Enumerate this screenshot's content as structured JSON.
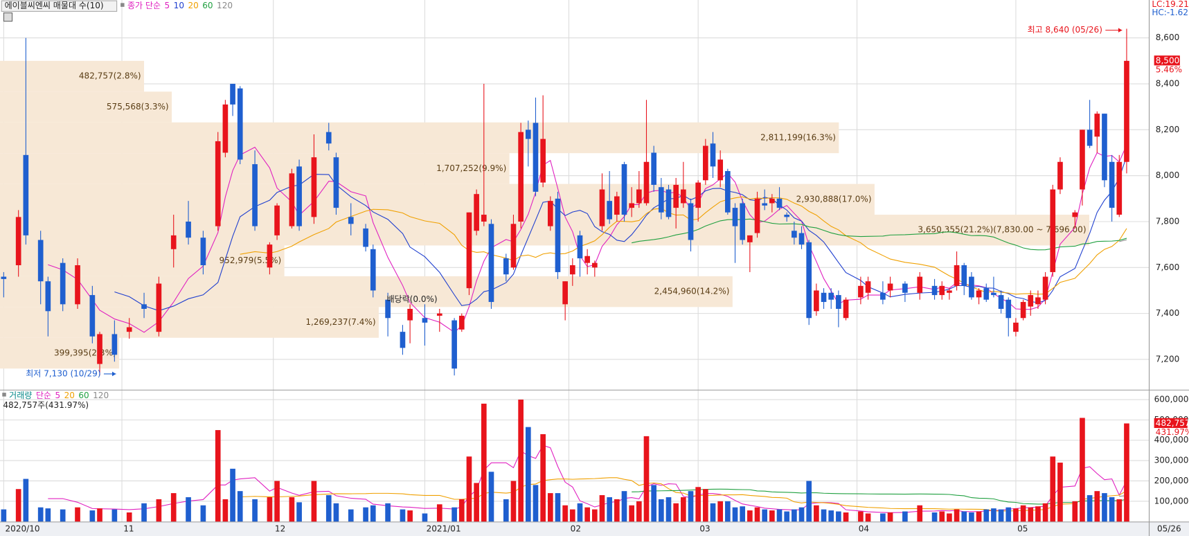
{
  "chart_data": {
    "type": "candlestick",
    "title": "에이블씨엔씨 매물대 수(10)",
    "ma_label": "종가 단순",
    "ma_periods": [
      5,
      10,
      20,
      60,
      120
    ],
    "ma_colors": [
      "#e020c0",
      "#1f3fcf",
      "#f0a000",
      "#20a040",
      "#888888"
    ],
    "lc": "LC:19.21",
    "hc": "HC:-1.62",
    "up_color": "#e8141c",
    "down_color": "#1f5fcf",
    "x": [
      0,
      2,
      3,
      5,
      6,
      8,
      10,
      12,
      13,
      15,
      17,
      19,
      21,
      23,
      25,
      27,
      29,
      30,
      31,
      32,
      34,
      36,
      37,
      39,
      40,
      42,
      44,
      45,
      47,
      49,
      50,
      52,
      54,
      55,
      57,
      59,
      61,
      62,
      63,
      64,
      65,
      66,
      68,
      69,
      70,
      71,
      72,
      73,
      74,
      75,
      76,
      77,
      78,
      79,
      80,
      81,
      82,
      83,
      84,
      85,
      86,
      87,
      88,
      89,
      90,
      91,
      92,
      93,
      94,
      95,
      96,
      97,
      98,
      99,
      100,
      101,
      102,
      103,
      104,
      105,
      106,
      107,
      108,
      109,
      110,
      111,
      112,
      113,
      114,
      116,
      117,
      119,
      120,
      122,
      124,
      126,
      127,
      128,
      129,
      130,
      131,
      132,
      133,
      134,
      135,
      136,
      137,
      138,
      139,
      140,
      141,
      142,
      143,
      145,
      146,
      147,
      148,
      149,
      150,
      151,
      152
    ],
    "open": [
      7560,
      7610,
      8090,
      7720,
      7540,
      7620,
      7440,
      7480,
      7180,
      7310,
      7320,
      7440,
      7320,
      7680,
      7800,
      7730,
      7780,
      8100,
      8400,
      8380,
      8050,
      7600,
      7740,
      7780,
      8040,
      7820,
      8190,
      8080,
      7820,
      7770,
      7680,
      7460,
      7320,
      7370,
      7380,
      7390,
      7370,
      7330,
      7510,
      7760,
      7800,
      7790,
      7640,
      7600,
      7800,
      8200,
      8230,
      7970,
      7780,
      7900,
      7440,
      7570,
      7740,
      7620,
      7600,
      7780,
      7890,
      7830,
      8050,
      7860,
      7880,
      7880,
      8100,
      7950,
      7940,
      7860,
      7880,
      7880,
      7860,
      7980,
      8140,
      7980,
      8020,
      7860,
      7880,
      7710,
      7750,
      7880,
      7880,
      7900,
      7830,
      7760,
      7750,
      7710,
      7410,
      7490,
      7490,
      7480,
      7380,
      7470,
      7490,
      7490,
      7500,
      7530,
      7490,
      7520,
      7480,
      7490,
      7520,
      7610,
      7560,
      7470,
      7510,
      7490,
      7480,
      7460,
      7320,
      7380,
      7430,
      7440,
      7460,
      7580,
      7940,
      7820,
      7940,
      8200,
      8170,
      8270,
      8060,
      7830,
      8060
    ],
    "high": [
      7580,
      7850,
      8600,
      7760,
      7560,
      7640,
      7640,
      7520,
      7320,
      7370,
      7380,
      7490,
      7560,
      7830,
      7890,
      7760,
      8190,
      8330,
      8400,
      8390,
      8110,
      7710,
      7880,
      8030,
      8070,
      8180,
      8230,
      8100,
      7880,
      7790,
      7700,
      7490,
      7350,
      7440,
      7440,
      7420,
      7380,
      7400,
      7840,
      7940,
      8400,
      7810,
      7660,
      7830,
      8230,
      8240,
      8340,
      8350,
      7910,
      7930,
      7540,
      7640,
      7760,
      7680,
      7630,
      8010,
      8020,
      7930,
      8060,
      7950,
      8020,
      8330,
      8130,
      7990,
      7960,
      7990,
      8060,
      7900,
      7980,
      8160,
      8190,
      8110,
      8030,
      7880,
      7900,
      7740,
      7930,
      7940,
      7920,
      7950,
      7840,
      7800,
      7780,
      7720,
      7530,
      7510,
      7510,
      7500,
      7470,
      7560,
      7560,
      7540,
      7560,
      7540,
      7580,
      7550,
      7540,
      7510,
      7670,
      7620,
      7580,
      7510,
      7530,
      7560,
      7500,
      7470,
      7380,
      7460,
      7500,
      7500,
      7580,
      7960,
      8080,
      7850,
      8200,
      8330,
      8280,
      8270,
      8090,
      8090,
      8640
    ],
    "low": [
      7470,
      7560,
      7700,
      7440,
      7300,
      7410,
      7420,
      7270,
      7130,
      7190,
      7290,
      7380,
      7300,
      7600,
      7700,
      7570,
      7760,
      8080,
      8260,
      8050,
      7760,
      7570,
      7720,
      7770,
      7760,
      7790,
      8110,
      7830,
      7740,
      7670,
      7470,
      7300,
      7220,
      7270,
      7260,
      7320,
      7130,
      7320,
      7480,
      7740,
      7780,
      7420,
      7540,
      7590,
      7770,
      8040,
      7910,
      7950,
      7760,
      7550,
      7370,
      7520,
      7560,
      7570,
      7560,
      7760,
      7790,
      7800,
      7800,
      7820,
      7860,
      7870,
      7930,
      7810,
      7810,
      7770,
      7860,
      7670,
      7800,
      7960,
      7990,
      7950,
      7830,
      7620,
      7700,
      7580,
      7730,
      7850,
      7840,
      7850,
      7800,
      7700,
      7680,
      7350,
      7390,
      7420,
      7420,
      7340,
      7370,
      7440,
      7460,
      7440,
      7470,
      7450,
      7460,
      7460,
      7460,
      7460,
      7500,
      7480,
      7460,
      7440,
      7450,
      7470,
      7400,
      7300,
      7300,
      7370,
      7390,
      7420,
      7440,
      7560,
      7920,
      7770,
      7870,
      8120,
      8100,
      7950,
      7800,
      7820,
      8010
    ],
    "close": [
      7550,
      7820,
      7740,
      7540,
      7410,
      7440,
      7610,
      7300,
      7310,
      7220,
      7340,
      7420,
      7530,
      7740,
      7730,
      7610,
      8150,
      8310,
      8310,
      8070,
      7780,
      7700,
      7870,
      8010,
      7780,
      8080,
      8140,
      7860,
      7790,
      7690,
      7500,
      7380,
      7250,
      7420,
      7360,
      7400,
      7160,
      7390,
      7840,
      7920,
      7830,
      7450,
      7570,
      7790,
      8190,
      8160,
      7930,
      8160,
      7890,
      7580,
      7540,
      7610,
      7640,
      7650,
      7620,
      7940,
      7810,
      7910,
      7830,
      7880,
      7940,
      8060,
      7960,
      7840,
      7820,
      7960,
      7940,
      7720,
      7970,
      8130,
      8040,
      8070,
      7840,
      7780,
      7720,
      7740,
      7900,
      7870,
      7900,
      7860,
      7820,
      7730,
      7700,
      7380,
      7500,
      7450,
      7460,
      7420,
      7460,
      7520,
      7540,
      7460,
      7530,
      7490,
      7560,
      7480,
      7520,
      7500,
      7610,
      7520,
      7470,
      7500,
      7460,
      7480,
      7420,
      7380,
      7360,
      7450,
      7480,
      7470,
      7560,
      7940,
      8060,
      7840,
      8200,
      8130,
      8270,
      7980,
      7860,
      8060,
      8500
    ],
    "xlim": [
      -0.5,
      155
    ],
    "xticks": [
      {
        "value": 0,
        "label": "2020/10"
      },
      {
        "value": 16,
        "label": "11"
      },
      {
        "value": 36.5,
        "label": "12"
      },
      {
        "value": 57,
        "label": "2021/01"
      },
      {
        "value": 76.5,
        "label": "02"
      },
      {
        "value": 94,
        "label": "03"
      },
      {
        "value": 115.5,
        "label": "04"
      },
      {
        "value": 137,
        "label": "05"
      }
    ],
    "end_label": "05/26",
    "ylim": [
      7068,
      8765
    ],
    "yticks": [
      {
        "value": 8600,
        "label": "8,600"
      },
      {
        "value": 8400,
        "label": "8,400"
      },
      {
        "value": 8200,
        "label": "8,200"
      },
      {
        "value": 8000,
        "label": "8,000"
      },
      {
        "value": 7800,
        "label": "7,800"
      },
      {
        "value": 7600,
        "label": "7,600"
      },
      {
        "value": 7400,
        "label": "7,400"
      },
      {
        "value": 7200,
        "label": "7,200"
      }
    ],
    "last_price": {
      "value": 8500,
      "label": "8,500",
      "change": "5.46%"
    },
    "high_note": {
      "value": 8640,
      "text": "최고 8,640 (05/26)"
    },
    "low_note": {
      "value": 7130,
      "text": "최저 7,130 (10/29)"
    },
    "dividend_note": "배당락(0.0%)",
    "profile": {
      "color": "#f7e8d6",
      "xlim": [
        0,
        3850000
      ],
      "lows": [
        8366,
        8232,
        8098,
        7964,
        7830,
        7696,
        7562,
        7428,
        7294,
        7160
      ],
      "highs": [
        8500,
        8366,
        8232,
        8098,
        7964,
        7830,
        7696,
        7562,
        7428,
        7294
      ],
      "values": [
        482757,
        575568,
        2811199,
        1707252,
        2930888,
        3650355,
        952979,
        2454960,
        1269237,
        399395
      ],
      "value_labels": [
        "482,757(2.8%)",
        "575,568(3.3%)",
        "2,811,199(16.3%)",
        "1,707,252(9.9%)",
        "2,930,888(17.0%)",
        "3,650,355(21.2%)(7,830.00 ~ 7,696.00)",
        "952,979(5.5%)",
        "2,454,960(14.2%)",
        "1,269,237(7.4%)",
        "399,395(2.3%)"
      ]
    },
    "volume": {
      "title": "거래량",
      "ma_label": "단순",
      "ma_periods": [
        5,
        20,
        60,
        120
      ],
      "ma_colors": [
        "#e020c0",
        "#f0a000",
        "#20a040",
        "#888888"
      ],
      "values": [
        60000,
        160000,
        210000,
        70000,
        65000,
        60000,
        70000,
        55000,
        65000,
        60000,
        45000,
        90000,
        110000,
        140000,
        120000,
        80000,
        450000,
        110000,
        260000,
        150000,
        110000,
        120000,
        200000,
        120000,
        95000,
        200000,
        130000,
        90000,
        60000,
        70000,
        80000,
        90000,
        60000,
        55000,
        40000,
        85000,
        70000,
        110000,
        320000,
        190000,
        580000,
        245000,
        110000,
        200000,
        600000,
        465000,
        180000,
        430000,
        140000,
        140000,
        80000,
        60000,
        90000,
        70000,
        60000,
        130000,
        120000,
        110000,
        150000,
        80000,
        100000,
        420000,
        180000,
        110000,
        120000,
        90000,
        120000,
        150000,
        170000,
        160000,
        90000,
        100000,
        100000,
        70000,
        75000,
        55000,
        70000,
        60000,
        55000,
        60000,
        50000,
        60000,
        70000,
        200000,
        80000,
        60000,
        55000,
        50000,
        45000,
        50000,
        40000,
        40000,
        45000,
        50000,
        80000,
        45000,
        50000,
        40000,
        60000,
        50000,
        45000,
        50000,
        60000,
        65000,
        60000,
        70000,
        65000,
        80000,
        70000,
        75000,
        90000,
        320000,
        290000,
        100000,
        510000,
        130000,
        150000,
        140000,
        120000,
        110000,
        482757
      ],
      "ylim": [
        0,
        645000
      ],
      "yticks": [
        {
          "value": 600000,
          "label": "600,000"
        },
        {
          "value": 500000,
          "label": "500,000"
        },
        {
          "value": 400000,
          "label": "400,000"
        },
        {
          "value": 300000,
          "label": "300,000"
        },
        {
          "value": 200000,
          "label": "200,000"
        },
        {
          "value": 100000,
          "label": "100,000"
        }
      ],
      "note": "482,757주(431.97%)",
      "last_label": "482,757",
      "last_pct": "431.97%"
    }
  }
}
